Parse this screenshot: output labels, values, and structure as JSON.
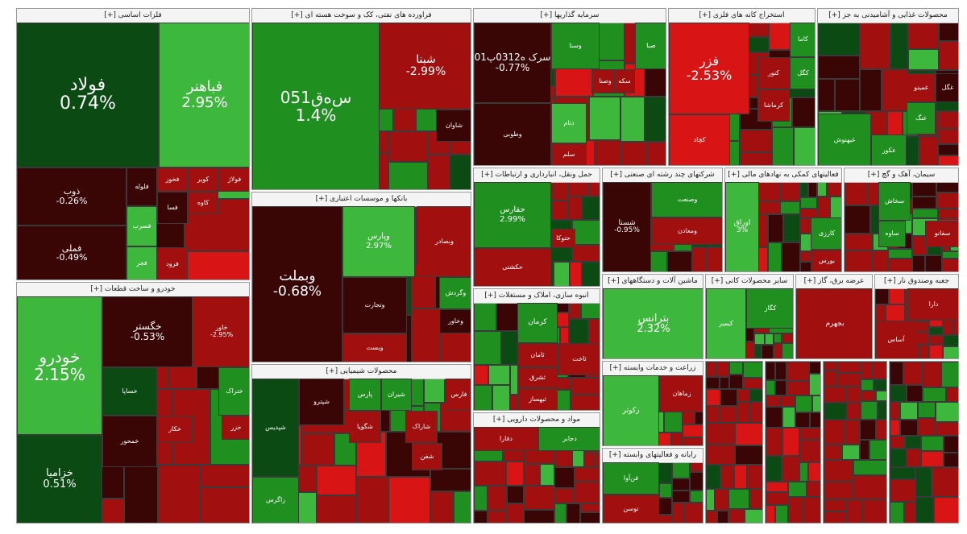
{
  "colors": {
    "deep_green": "#0b4a12",
    "green": "#1f8f1f",
    "light_green": "#3db83d",
    "deep_red": "#3a0505",
    "red": "#a10f0f",
    "bright_red": "#d81414",
    "frame": "#ffffff"
  },
  "chart_data": {
    "type": "heatmap",
    "title": "",
    "note": "",
    "sectors": [
      {
        "name": "فلزات اساسی [+]",
        "tiles": [
          {
            "symbol": "فولاد",
            "change": "0.74%",
            "color": "deep_green"
          },
          {
            "symbol": "فباهنر",
            "change": "2.95%",
            "color": "light_green"
          },
          {
            "symbol": "ذوب",
            "change": "-0.26%",
            "color": "deep_red"
          },
          {
            "symbol": "فملی",
            "change": "-0.49%",
            "color": "deep_red"
          },
          {
            "symbol": "فلوله",
            "change": "",
            "color": "deep_red"
          },
          {
            "symbol": "فسرب",
            "change": "",
            "color": "light_green"
          },
          {
            "symbol": "فجر",
            "change": "",
            "color": "light_green"
          },
          {
            "symbol": "فخوز",
            "change": "",
            "color": "red"
          },
          {
            "symbol": "کویر",
            "change": "",
            "color": "red"
          },
          {
            "symbol": "فولاژ",
            "change": "",
            "color": "red"
          },
          {
            "symbol": "کاوه",
            "change": "",
            "color": "red"
          },
          {
            "symbol": "فسا",
            "change": "",
            "color": "deep_red"
          },
          {
            "symbol": "فرود",
            "change": "",
            "color": "red"
          }
        ]
      },
      {
        "name": "فراورده های نفتی، کک و سوخت هسته ای [+]",
        "tiles": [
          {
            "symbol": "س‌ه‌ق051",
            "change": "1.4%",
            "color": "green"
          },
          {
            "symbol": "شبنا",
            "change": "-2.99%",
            "color": "red"
          },
          {
            "symbol": "شاوان",
            "change": "",
            "color": "deep_red"
          }
        ]
      },
      {
        "name": "سرمایه گذاریها [+]",
        "tiles": [
          {
            "symbol": "سرک ه0312پ01",
            "change": "-0.77%",
            "color": "deep_red"
          },
          {
            "symbol": "وسنا",
            "change": "",
            "color": "green"
          },
          {
            "symbol": "صبا",
            "change": "",
            "color": "green"
          },
          {
            "symbol": "وصنا",
            "change": "",
            "color": "red"
          },
          {
            "symbol": "دتام",
            "change": "",
            "color": "light_green"
          },
          {
            "symbol": "سکه",
            "change": "",
            "color": "red"
          },
          {
            "symbol": "سلم",
            "change": "",
            "color": "red"
          },
          {
            "symbol": "وطوبی",
            "change": "",
            "color": "deep_red"
          }
        ]
      },
      {
        "name": "استخراج کانه های فلزی [+]",
        "tiles": [
          {
            "symbol": "فزر",
            "change": "-2.53%",
            "color": "bright_red"
          },
          {
            "symbol": "کچاد",
            "change": "",
            "color": "bright_red"
          },
          {
            "symbol": "کگل",
            "change": "",
            "color": "green"
          },
          {
            "symbol": "کنور",
            "change": "",
            "color": "red"
          },
          {
            "symbol": "کاما",
            "change": "",
            "color": "green"
          },
          {
            "symbol": "کرماشا",
            "change": "",
            "color": "red"
          }
        ]
      },
      {
        "name": "محصولات غذایی و آشامیدنی به جز [+]",
        "tiles": [
          {
            "symbol": "غگل",
            "change": "",
            "color": "deep_red"
          },
          {
            "symbol": "غمینو",
            "change": "",
            "color": "red"
          },
          {
            "symbol": "غنگ",
            "change": "",
            "color": "green"
          },
          {
            "symbol": "غبهنوش",
            "change": "",
            "color": "green"
          },
          {
            "symbol": "غکور",
            "change": "",
            "color": "green"
          }
        ]
      },
      {
        "name": "بانکها و موسسات اعتباری [+]",
        "tiles": [
          {
            "symbol": "وبملت",
            "change": "-0.68%",
            "color": "deep_red"
          },
          {
            "symbol": "وپارس",
            "change": "2.97%",
            "color": "light_green"
          },
          {
            "symbol": "وبصادر",
            "change": "",
            "color": "red"
          },
          {
            "symbol": "وتجارت",
            "change": "",
            "color": "deep_red"
          },
          {
            "symbol": "وبست",
            "change": "",
            "color": "red"
          },
          {
            "symbol": "وگردش",
            "change": "",
            "color": "green"
          },
          {
            "symbol": "وخاور",
            "change": "",
            "color": "deep_red"
          }
        ]
      },
      {
        "name": "حمل ونقل، انبارداری و ارتباطات [+]",
        "tiles": [
          {
            "symbol": "حفارس",
            "change": "2.99%",
            "color": "green"
          },
          {
            "symbol": "حکشتی",
            "change": "",
            "color": "red"
          },
          {
            "symbol": "حتوکا",
            "change": "",
            "color": "red"
          }
        ]
      },
      {
        "name": "شرکتهای چند رشته ای صنعتی [+]",
        "tiles": [
          {
            "symbol": "شستا",
            "change": "-0.95%",
            "color": "deep_red"
          },
          {
            "symbol": "وصنعت",
            "change": "",
            "color": "green"
          },
          {
            "symbol": "ومعادن",
            "change": "",
            "color": "red"
          }
        ]
      },
      {
        "name": "فعالیتهای کمکی به نهادهای مالی [+]",
        "tiles": [
          {
            "symbol": "اوراق",
            "change": "3%",
            "color": "light_green"
          },
          {
            "symbol": "کارزی",
            "change": "",
            "color": "green"
          },
          {
            "symbol": "بورس",
            "change": "",
            "color": "red"
          }
        ]
      },
      {
        "name": "سیمان، آهک و گچ [+]",
        "tiles": [
          {
            "symbol": "سخاش",
            "change": "",
            "color": "green"
          },
          {
            "symbol": "ساوه",
            "change": "",
            "color": "green"
          },
          {
            "symbol": "سفانو",
            "change": "",
            "color": "red"
          }
        ]
      },
      {
        "name": "خودرو و ساخت قطعات [+]",
        "tiles": [
          {
            "symbol": "خودرو",
            "change": "2.15%",
            "color": "light_green"
          },
          {
            "symbol": "خزامیا",
            "change": "0.51%",
            "color": "deep_green"
          },
          {
            "symbol": "خگستر",
            "change": "-0.53%",
            "color": "deep_red"
          },
          {
            "symbol": "خاور",
            "change": "-2.95%",
            "color": "red"
          },
          {
            "symbol": "خساپا",
            "change": "",
            "color": "deep_green"
          },
          {
            "symbol": "خمحور",
            "change": "",
            "color": "deep_red"
          },
          {
            "symbol": "خزر",
            "change": "",
            "color": "red"
          },
          {
            "symbol": "ختراک",
            "change": "",
            "color": "green"
          },
          {
            "symbol": "خکار",
            "change": "",
            "color": "red"
          }
        ]
      },
      {
        "name": "محصولات شیمیایی [+]",
        "tiles": [
          {
            "symbol": "شپدیس",
            "change": "",
            "color": "deep_green"
          },
          {
            "symbol": "شپترو",
            "change": "",
            "color": "deep_red"
          },
          {
            "symbol": "پارس",
            "change": "",
            "color": "green"
          },
          {
            "symbol": "شیران",
            "change": "",
            "color": "green"
          },
          {
            "symbol": "فارس",
            "change": "",
            "color": "red"
          },
          {
            "symbol": "شگویا",
            "change": "",
            "color": "red"
          },
          {
            "symbol": "شاراک",
            "change": "",
            "color": "red"
          },
          {
            "symbol": "شفن",
            "change": "",
            "color": "red"
          },
          {
            "symbol": "زاگرس",
            "change": "",
            "color": "green"
          }
        ]
      },
      {
        "name": "انبوه سازی، املاک و مستغلات [+]",
        "tiles": [
          {
            "symbol": "کرمان",
            "change": "",
            "color": "green"
          },
          {
            "symbol": "ثامان",
            "change": "",
            "color": "red"
          },
          {
            "symbol": "ثشرق",
            "change": "",
            "color": "red"
          },
          {
            "symbol": "ثاخت",
            "change": "",
            "color": "red"
          },
          {
            "symbol": "ثبهساز",
            "change": "",
            "color": "red"
          }
        ]
      },
      {
        "name": "مواد و محصولات دارویی [+]",
        "tiles": [
          {
            "symbol": "دفارا",
            "change": "",
            "color": "red"
          },
          {
            "symbol": "دجابر",
            "change": "",
            "color": "green"
          }
        ]
      },
      {
        "name": "ماشین آلات و دستگاههای [+]",
        "tiles": [
          {
            "symbol": "بترانس",
            "change": "2.32%",
            "color": "light_green"
          }
        ]
      },
      {
        "name": "زراعت و خدمات وابسته [+]",
        "tiles": [
          {
            "symbol": "زکوثر",
            "change": "",
            "color": "light_green"
          },
          {
            "symbol": "زماهان",
            "change": "",
            "color": "red"
          }
        ]
      },
      {
        "name": "رایانه و فعالیتهای وابسته [+]",
        "tiles": [
          {
            "symbol": "فن‌آوا",
            "change": "",
            "color": "green"
          },
          {
            "symbol": "توسن",
            "change": "",
            "color": "red"
          }
        ]
      },
      {
        "name": "سایر محصولات کانی [+]",
        "tiles": [
          {
            "symbol": "کگاز",
            "change": "",
            "color": "green"
          },
          {
            "symbol": "کیمیر",
            "change": "",
            "color": "light_green"
          }
        ]
      },
      {
        "name": "عرضه برق، گاز [+]",
        "tiles": [
          {
            "symbol": "بجهرم",
            "change": "",
            "color": "red"
          }
        ]
      },
      {
        "name": "جعبه وصندوق نار [+]",
        "tiles": [
          {
            "symbol": "دارا",
            "change": "",
            "color": "red"
          },
          {
            "symbol": "آساس",
            "change": "",
            "color": "red"
          }
        ]
      }
    ]
  }
}
